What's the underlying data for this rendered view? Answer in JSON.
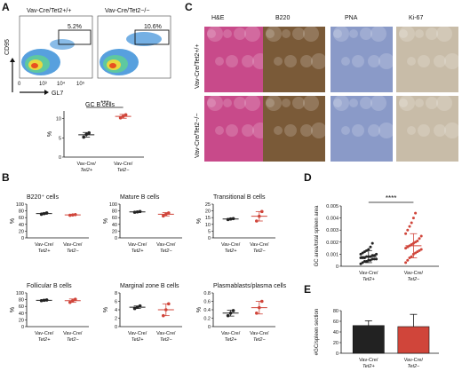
{
  "panel_labels": {
    "A": "A",
    "B": "B",
    "C": "C",
    "D": "D",
    "E": "E"
  },
  "panel_a": {
    "flow": [
      {
        "title": "Vav-Cre/Tet2+/+",
        "gate_pct": "5.2%"
      },
      {
        "title": "Vav-Cre/Tet2−/−",
        "gate_pct": "10.6%"
      }
    ],
    "flow_axes": {
      "x_label": "GL7",
      "y_label": "CD95",
      "ticks": [
        "0",
        "10³",
        "10⁴",
        "10⁵"
      ]
    }
  },
  "panel_c": {
    "col_headers": [
      "H&E",
      "B220",
      "PNA",
      "Ki-67"
    ],
    "row_labels": [
      "Vav-Cre/Tet2+/+",
      "Vav-Cre/Tet2−/−"
    ],
    "tile_colors": {
      "he": "#c84a8a",
      "b220": "#7a5a38",
      "pna": "#8a9ac8",
      "ki67": "#c8bca8"
    }
  },
  "chart_data": [
    {
      "id": "gc-b-cells",
      "type": "scatter",
      "title": "GC B cells",
      "ylabel": "%",
      "ylim": [
        0,
        12
      ],
      "yticks": [
        0,
        5,
        10
      ],
      "categories": [
        "Vav-Cre/Tet2+/+",
        "Vav-Cre/Tet2−/−"
      ],
      "means": [
        5.8,
        10.6
      ],
      "sd": [
        0.6,
        0.5
      ],
      "points": [
        [
          5.2,
          5.9,
          6.3
        ],
        [
          10.2,
          10.6,
          11.0
        ]
      ],
      "colors": [
        "#222222",
        "#d0453a"
      ],
      "annotation": "***"
    },
    {
      "id": "b220",
      "type": "scatter",
      "title": "B220⁺ cells",
      "ylabel": "%",
      "ylim": [
        0,
        100
      ],
      "yticks": [
        0,
        20,
        40,
        60,
        80,
        100
      ],
      "categories": [
        "Vav-Cre/Tet2+/+",
        "Vav-Cre/Tet2−/−"
      ],
      "means": [
        72,
        68
      ],
      "sd": [
        2,
        1.5
      ],
      "points": [
        [
          70,
          72,
          74
        ],
        [
          67,
          68,
          69
        ]
      ],
      "colors": [
        "#222222",
        "#d0453a"
      ]
    },
    {
      "id": "mature",
      "type": "scatter",
      "title": "Mature B cells",
      "ylabel": "%",
      "ylim": [
        0,
        100
      ],
      "yticks": [
        0,
        20,
        40,
        60,
        80,
        100
      ],
      "categories": [
        "Vav-Cre/Tet2+/+",
        "Vav-Cre/Tet2−/−"
      ],
      "means": [
        77,
        70
      ],
      "sd": [
        1.5,
        5
      ],
      "points": [
        [
          76,
          77,
          78
        ],
        [
          65,
          70,
          74
        ]
      ],
      "colors": [
        "#222222",
        "#d0453a"
      ]
    },
    {
      "id": "transitional",
      "type": "scatter",
      "title": "Transitional B cells",
      "ylabel": "%",
      "ylim": [
        0,
        25
      ],
      "yticks": [
        0,
        5,
        10,
        15,
        20,
        25
      ],
      "categories": [
        "Vav-Cre/Tet2+/+",
        "Vav-Cre/Tet2−/−"
      ],
      "means": [
        14,
        16
      ],
      "sd": [
        0.4,
        3.5
      ],
      "points": [
        [
          13.6,
          14,
          14.3
        ],
        [
          12.5,
          16,
          19.5
        ]
      ],
      "colors": [
        "#222222",
        "#d0453a"
      ]
    },
    {
      "id": "follicular",
      "type": "scatter",
      "title": "Follicular B cells",
      "ylabel": "%",
      "ylim": [
        0,
        100
      ],
      "yticks": [
        0,
        20,
        40,
        60,
        80,
        100
      ],
      "categories": [
        "Vav-Cre/Tet2+/+",
        "Vav-Cre/Tet2−/−"
      ],
      "means": [
        78,
        77
      ],
      "sd": [
        1.5,
        5
      ],
      "points": [
        [
          77,
          78,
          79
        ],
        [
          72,
          77,
          81
        ]
      ],
      "colors": [
        "#222222",
        "#d0453a"
      ]
    },
    {
      "id": "marginal",
      "type": "scatter",
      "title": "Marginal zone B cells",
      "ylabel": "%",
      "ylim": [
        0,
        8
      ],
      "yticks": [
        0,
        2,
        4,
        6,
        8
      ],
      "categories": [
        "Vav-Cre/Tet2+/+",
        "Vav-Cre/Tet2−/−"
      ],
      "means": [
        4.6,
        4
      ],
      "sd": [
        0.3,
        1.4
      ],
      "points": [
        [
          4.3,
          4.6,
          4.9
        ],
        [
          2.6,
          4,
          5.4
        ]
      ],
      "colors": [
        "#222222",
        "#d0453a"
      ]
    },
    {
      "id": "plasma",
      "type": "scatter",
      "title": "Plasmablasts/plasma cells",
      "ylabel": "%",
      "ylim": [
        0,
        0.8
      ],
      "yticks": [
        0,
        0.2,
        0.4,
        0.6,
        0.8
      ],
      "categories": [
        "Vav-Cre/Tet2+/+",
        "Vav-Cre/Tet2−/−"
      ],
      "means": [
        0.32,
        0.45
      ],
      "sd": [
        0.07,
        0.15
      ],
      "points": [
        [
          0.26,
          0.32,
          0.38
        ],
        [
          0.32,
          0.45,
          0.6
        ]
      ],
      "colors": [
        "#222222",
        "#d0453a"
      ]
    },
    {
      "id": "gc-area",
      "type": "scatter",
      "ylabel": "GC area/total spleen area",
      "ylim": [
        0,
        0.005
      ],
      "yticks": [
        0,
        0.001,
        0.002,
        0.003,
        0.004,
        0.005
      ],
      "categories": [
        "Vav-Cre/Tet2+/+",
        "Vav-Cre/Tet2−/−"
      ],
      "means": [
        0.0008,
        0.0017
      ],
      "sd": [
        0.0005,
        0.001
      ],
      "points": [
        [
          0.0002,
          0.0003,
          0.0004,
          0.0004,
          0.0005,
          0.0005,
          0.0006,
          0.0006,
          0.0006,
          0.0007,
          0.0007,
          0.0007,
          0.0008,
          0.0008,
          0.0008,
          0.0009,
          0.0009,
          0.001,
          0.001,
          0.0011,
          0.0012,
          0.0013,
          0.0014,
          0.0016,
          0.0019
        ],
        [
          0.0003,
          0.0005,
          0.0007,
          0.0008,
          0.001,
          0.0011,
          0.0012,
          0.0013,
          0.0014,
          0.0015,
          0.0016,
          0.0017,
          0.0018,
          0.0019,
          0.002,
          0.0021,
          0.0023,
          0.0025,
          0.0027,
          0.003,
          0.0033,
          0.0036,
          0.004,
          0.0044
        ]
      ],
      "colors": [
        "#222222",
        "#d0453a"
      ],
      "annotation": "****"
    },
    {
      "id": "gc-count",
      "type": "bar",
      "ylabel": "#GC/spleen section",
      "ylim": [
        0,
        80
      ],
      "yticks": [
        0,
        20,
        40,
        60,
        80
      ],
      "categories": [
        "Vav-Cre/Tet2+/+",
        "Vav-Cre/Tet2−/−"
      ],
      "values": [
        52,
        50
      ],
      "sd": [
        9,
        23
      ],
      "colors": [
        "#222222",
        "#d0453a"
      ]
    }
  ]
}
